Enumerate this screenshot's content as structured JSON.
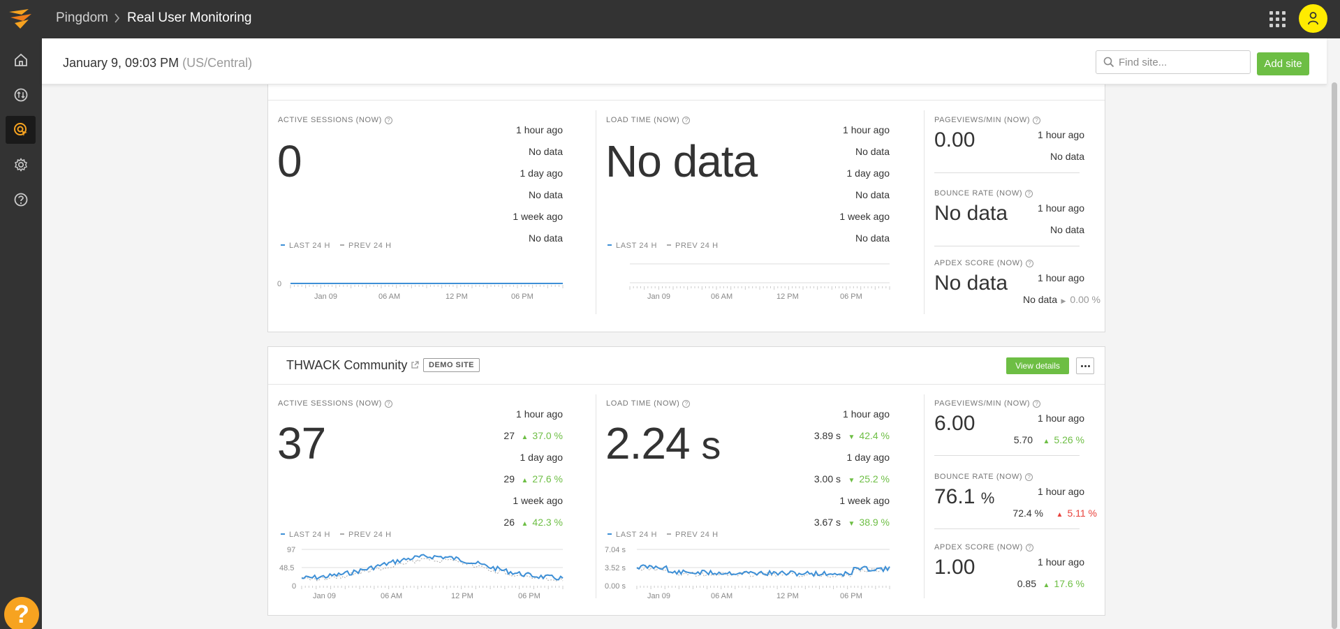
{
  "header": {
    "breadcrumb_root": "Pingdom",
    "breadcrumb_page": "Real User Monitoring"
  },
  "subheader": {
    "date": "January 9, 09:03 PM",
    "timezone": "(US/Central)",
    "search_placeholder": "Find site...",
    "add_site_label": "Add site"
  },
  "sidebar": {
    "items": [
      "home-icon",
      "uptime-icon",
      "rum-icon",
      "settings-icon",
      "help-icon"
    ],
    "active": "rum-icon",
    "help_fab": "?"
  },
  "labels": {
    "active_sessions": "ACTIVE SESSIONS (NOW)",
    "load_time": "LOAD TIME (NOW)",
    "pageviews": "PAGEVIEWS/MIN (NOW)",
    "bounce_rate": "BOUNCE RATE (NOW)",
    "apdex": "APDEX SCORE (NOW)",
    "last24": "LAST 24 H",
    "prev24": "PREV 24 H",
    "hour_ago": "1 hour ago",
    "day_ago": "1 day ago",
    "week_ago": "1 week ago",
    "no_data": "No data",
    "view_details": "View details"
  },
  "site1": {
    "active_sessions": "0",
    "load_time": "No data",
    "pageviews": "0.00",
    "bounce_rate": "No data",
    "apdex": "No data",
    "apdex_prev": "No data",
    "apdex_delta": "0.00 %",
    "sessions_chart": {
      "y_ticks": [
        "0"
      ],
      "x_ticks": [
        "Jan 09",
        "06 AM",
        "12 PM",
        "06 PM"
      ]
    },
    "load_chart": {
      "x_ticks": [
        "Jan 09",
        "06 AM",
        "12 PM",
        "06 PM"
      ]
    }
  },
  "site2": {
    "name": "THWACK Community",
    "badge": "DEMO SITE",
    "active_sessions": "37",
    "sessions_cmp": [
      {
        "value": "27",
        "delta": "37.0 %"
      },
      {
        "value": "29",
        "delta": "27.6 %"
      },
      {
        "value": "26",
        "delta": "42.3 %"
      }
    ],
    "load_time": "2.24",
    "load_unit": "s",
    "load_cmp": [
      {
        "value": "3.89 s",
        "delta": "42.4 %"
      },
      {
        "value": "3.00 s",
        "delta": "25.2 %"
      },
      {
        "value": "3.67 s",
        "delta": "38.9 %"
      }
    ],
    "pageviews": "6.00",
    "pageviews_prev": "5.70",
    "pageviews_delta": "5.26 %",
    "bounce_rate": "76.1",
    "bounce_unit": "%",
    "bounce_prev": "72.4 %",
    "bounce_delta": "5.11 %",
    "apdex": "1.00",
    "apdex_prev": "0.85",
    "apdex_delta": "17.6 %",
    "sessions_chart": {
      "y_ticks": [
        "97",
        "48.5",
        "0"
      ],
      "x_ticks": [
        "Jan 09",
        "06 AM",
        "12 PM",
        "06 PM"
      ]
    },
    "load_chart": {
      "y_ticks": [
        "7.04 s",
        "3.52 s",
        "0.00 s"
      ],
      "x_ticks": [
        "Jan 09",
        "06 AM",
        "12 PM",
        "06 PM"
      ]
    }
  },
  "colors": {
    "accent_green": "#6dbe44",
    "series_blue": "#3d8fd6",
    "bad_red": "#e8403a",
    "topbar": "#333333",
    "avatar": "#ffeb00",
    "help_orange": "#f7a320"
  }
}
